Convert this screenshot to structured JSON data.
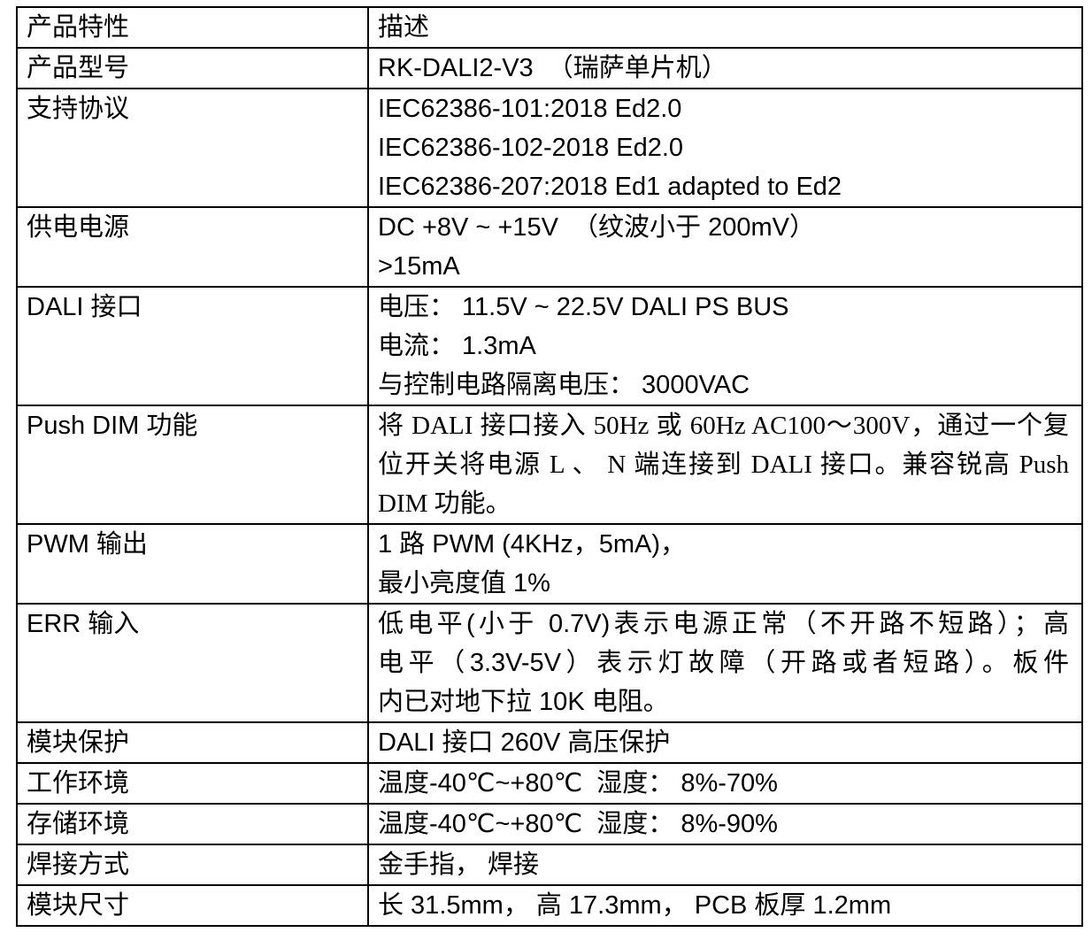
{
  "theme": {
    "background": "#ffffff",
    "text": "#000000",
    "border": "#000000"
  },
  "table": {
    "header": {
      "feature": "产品特性",
      "description": "描述"
    },
    "rows": [
      {
        "feature": "产品型号",
        "description_lines": [
          "RK-DALI2-V3  （瑞萨单片机）"
        ]
      },
      {
        "feature": "支持协议",
        "description_lines": [
          "IEC62386-101:2018 Ed2.0",
          "IEC62386-102-2018 Ed2.0",
          "IEC62386-207:2018 Ed1 adapted to Ed2"
        ]
      },
      {
        "feature": "供电电源",
        "description_lines": [
          "DC +8V ~ +15V  （纹波小于 200mV）",
          ">15mA"
        ]
      },
      {
        "feature": "DALI 接口",
        "description_lines": [
          "电压： 11.5V ~ 22.5V DALI PS BUS",
          "电流： 1.3mA",
          "与控制电路隔离电压： 3000VAC"
        ]
      },
      {
        "feature": "Push DIM 功能",
        "description_lines": [
          "将 DALI 接口接入 50Hz 或 60Hz AC100～300V，通过一个复",
          "位开关将电源 L 、 N 端连接到 DALI 接口。兼容锐高 Push",
          "DIM 功能。"
        ]
      },
      {
        "feature": "PWM 输出",
        "description_lines": [
          "1 路 PWM (4KHz，5mA)，",
          "最小亮度值 1%"
        ]
      },
      {
        "feature": "ERR 输入",
        "description_lines": [
          "低电平(小于 0.7V)表示电源正常（不开路不短路）；高",
          "电平（3.3V-5V）表示灯故障（开路或者短路）。板件",
          "内已对地下拉 10K 电阻。"
        ]
      },
      {
        "feature": "模块保护",
        "description_lines": [
          "DALI 接口 260V 高压保护"
        ]
      },
      {
        "feature": "工作环境",
        "description_lines": [
          "温度-40℃~+80℃  湿度： 8%-70%"
        ]
      },
      {
        "feature": "存储环境",
        "description_lines": [
          "温度-40℃~+80℃  湿度： 8%-90%"
        ]
      },
      {
        "feature": "焊接方式",
        "description_lines": [
          "金手指， 焊接"
        ]
      },
      {
        "feature": "模块尺寸",
        "description_lines": [
          "长 31.5mm， 高 17.3mm， PCB 板厚 1.2mm"
        ]
      }
    ]
  }
}
